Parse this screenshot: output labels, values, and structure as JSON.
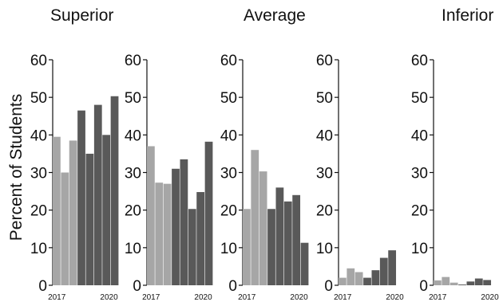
{
  "chart_data": {
    "type": "bar",
    "ylabel": "Percent of Students",
    "ylim": [
      0,
      60
    ],
    "yticks": [
      0,
      10,
      20,
      30,
      40,
      50,
      60
    ],
    "grid": false,
    "group_titles": [
      "Superior",
      "Average",
      "Inferior"
    ],
    "x_tick_labels": [
      "2017",
      "2020"
    ],
    "panels": [
      {
        "values": [
          39.5,
          30,
          38.5,
          46.5,
          35,
          48,
          40,
          50.3
        ]
      },
      {
        "values": [
          37,
          27.3,
          27,
          31,
          33.5,
          20.3,
          24.8,
          38.2
        ]
      },
      {
        "values": [
          20.3,
          36,
          30.3,
          20.3,
          26,
          22.3,
          24,
          11.3
        ]
      },
      {
        "values": [
          2,
          4.5,
          3.5,
          2,
          4,
          7.3,
          9.3,
          0
        ]
      },
      {
        "values": [
          1.3,
          2.2,
          0.7,
          0.2,
          1,
          1.8,
          1.4,
          0
        ]
      }
    ],
    "bar_colors": [
      "#a6a6a6",
      "#a6a6a6",
      "#a6a6a6",
      "#595959",
      "#595959",
      "#595959",
      "#595959",
      "#595959"
    ]
  }
}
